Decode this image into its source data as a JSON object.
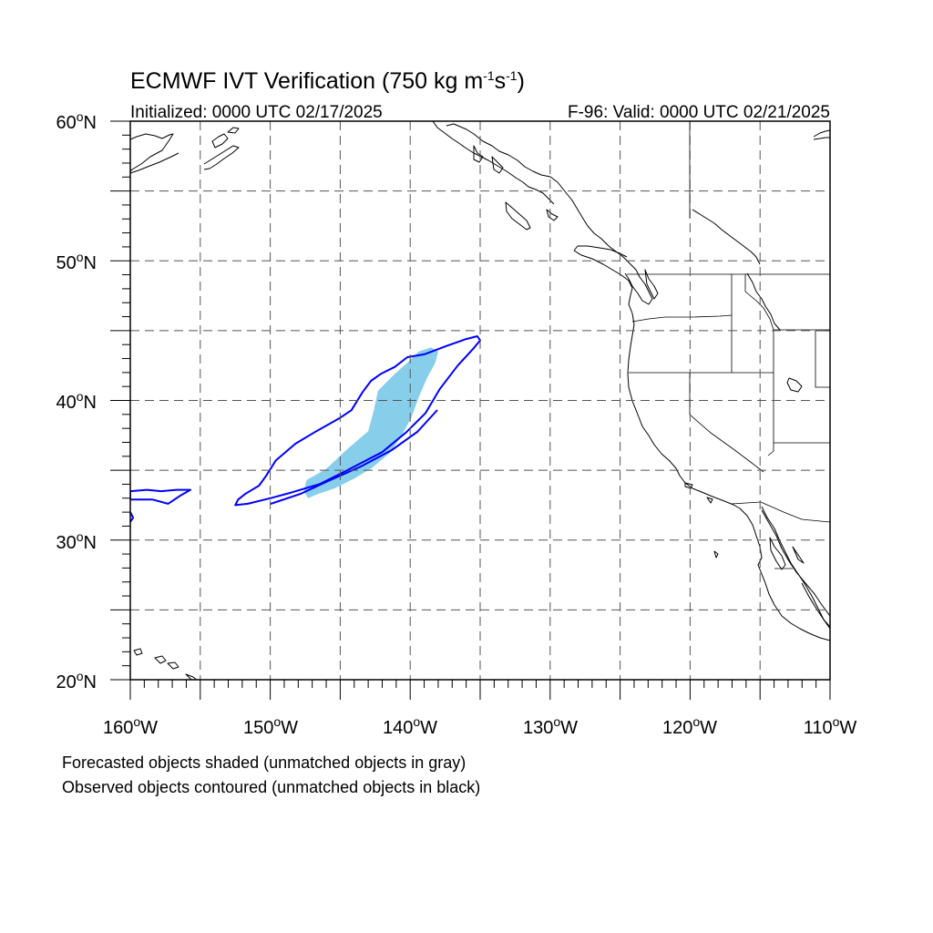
{
  "title": {
    "main": "ECMWF IVT Verification (750 kg m",
    "sup1": "-1",
    "mid": "s",
    "sup2": "-1",
    "end": ")"
  },
  "subtitle_left": "Initialized: 0000 UTC 02/17/2025",
  "subtitle_right": "F-96: Valid: 0000 UTC 02/21/2025",
  "lat_labels": [
    "60",
    "50",
    "40",
    "30",
    "20"
  ],
  "lat_suffix": "N",
  "lon_labels": [
    "160",
    "150",
    "140",
    "130",
    "120",
    "110"
  ],
  "lon_suffix": "W",
  "degree_symbol": "o",
  "caption": {
    "line1": "Forecasted objects shaded (unmatched objects in gray)",
    "line2": "Observed objects contoured (unmatched objects in black)"
  },
  "map_extent": {
    "lon_min": -160,
    "lon_max": -110,
    "lat_min": 20,
    "lat_max": 60
  },
  "colors": {
    "forecast_fill": "#87ceeb",
    "observed_contour": "#0000ff",
    "grid": "#555555",
    "coastline": "#000000"
  },
  "forecast_object": [
    [
      -147.3,
      33.0
    ],
    [
      -146.6,
      33.3
    ],
    [
      -145.4,
      33.7
    ],
    [
      -144.0,
      34.4
    ],
    [
      -142.7,
      35.2
    ],
    [
      -141.5,
      36.2
    ],
    [
      -140.6,
      37.5
    ],
    [
      -139.9,
      38.8
    ],
    [
      -139.4,
      40.2
    ],
    [
      -138.8,
      41.6
    ],
    [
      -138.2,
      42.7
    ],
    [
      -138.0,
      43.5
    ],
    [
      -138.5,
      43.8
    ],
    [
      -139.4,
      43.5
    ],
    [
      -140.1,
      42.8
    ],
    [
      -141.1,
      41.9
    ],
    [
      -142.3,
      40.7
    ],
    [
      -142.6,
      39.3
    ],
    [
      -143.0,
      37.8
    ],
    [
      -144.4,
      36.6
    ],
    [
      -146.0,
      35.1
    ],
    [
      -147.4,
      34.3
    ],
    [
      -147.6,
      33.5
    ]
  ],
  "observed_object_main": [
    [
      -152.5,
      32.5
    ],
    [
      -151.6,
      32.6
    ],
    [
      -150.0,
      33.0
    ],
    [
      -148.5,
      33.4
    ],
    [
      -146.5,
      34.0
    ],
    [
      -144.5,
      35.0
    ],
    [
      -142.0,
      36.3
    ],
    [
      -140.3,
      37.7
    ],
    [
      -138.9,
      39.1
    ],
    [
      -137.9,
      40.8
    ],
    [
      -136.6,
      42.5
    ],
    [
      -135.5,
      43.7
    ],
    [
      -135.0,
      44.3
    ],
    [
      -135.2,
      44.6
    ],
    [
      -136.0,
      44.4
    ],
    [
      -137.4,
      43.9
    ],
    [
      -139.0,
      43.3
    ],
    [
      -140.2,
      43.1
    ],
    [
      -141.1,
      42.4
    ],
    [
      -142.1,
      41.9
    ],
    [
      -142.8,
      41.4
    ],
    [
      -143.4,
      40.6
    ],
    [
      -144.2,
      39.3
    ],
    [
      -145.1,
      38.7
    ],
    [
      -146.7,
      37.8
    ],
    [
      -148.2,
      36.9
    ],
    [
      -149.6,
      35.7
    ],
    [
      -150.3,
      34.6
    ],
    [
      -150.8,
      33.9
    ],
    [
      -151.8,
      33.3
    ],
    [
      -152.3,
      32.9
    ]
  ],
  "observed_object_west": [
    [
      -160.0,
      33.5
    ],
    [
      -158.8,
      33.6
    ],
    [
      -157.8,
      33.5
    ],
    [
      -156.7,
      33.6
    ],
    [
      -155.7,
      33.6
    ],
    [
      -156.4,
      33.2
    ],
    [
      -157.3,
      32.6
    ],
    [
      -158.4,
      32.9
    ],
    [
      -159.6,
      32.9
    ],
    [
      -160.0,
      32.9
    ]
  ],
  "observed_object_edge": [
    [
      -160.0,
      32.0
    ],
    [
      -159.8,
      31.6
    ],
    [
      -160.0,
      31.3
    ]
  ]
}
